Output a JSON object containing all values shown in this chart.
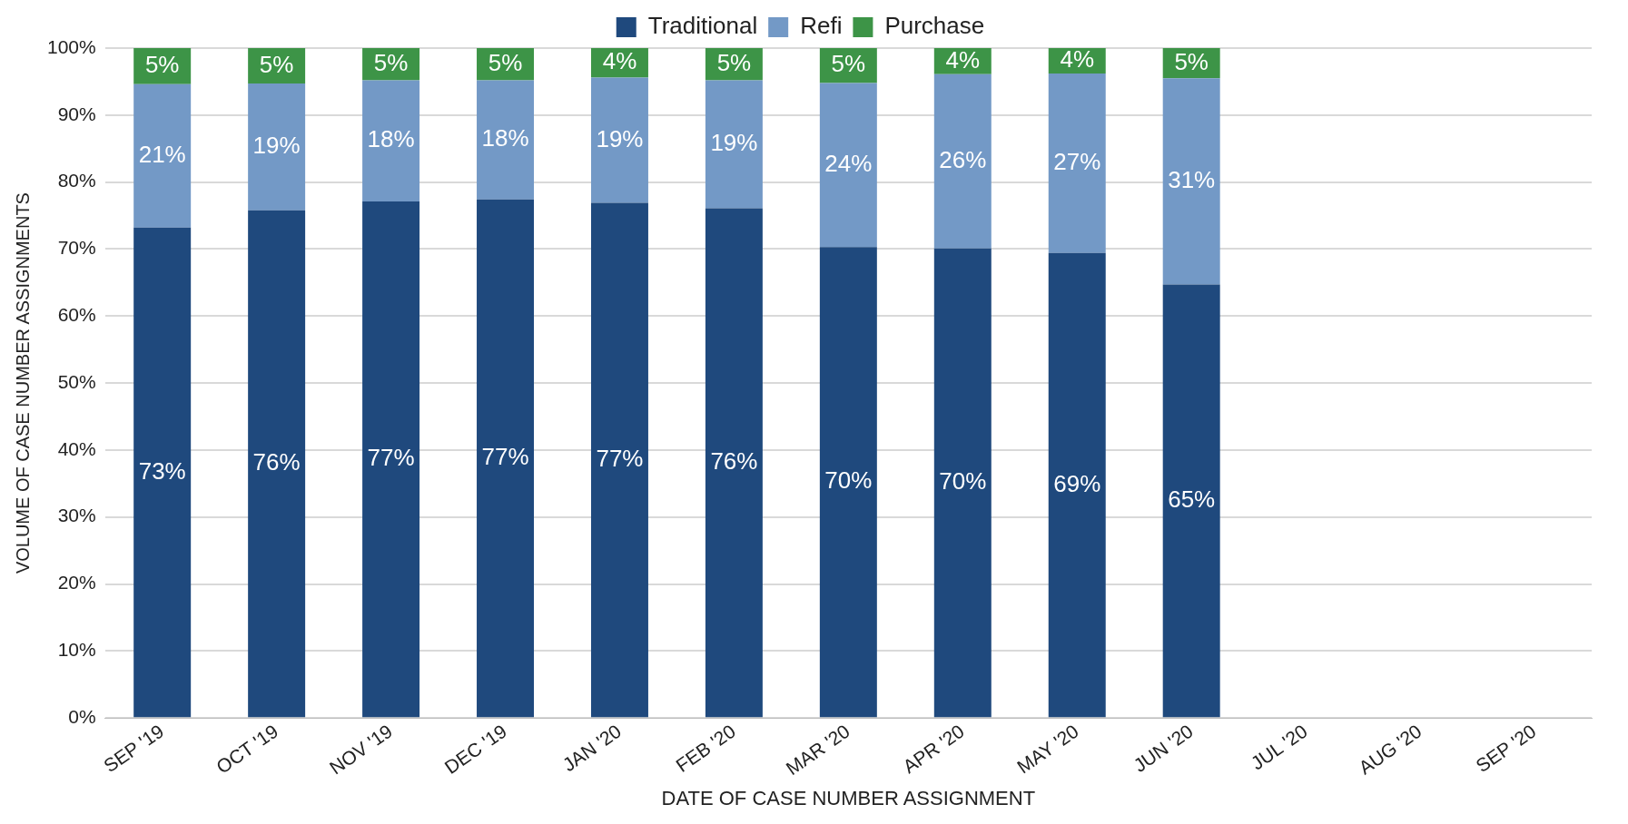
{
  "chart_data": {
    "type": "bar",
    "stacked": true,
    "xlabel": "DATE OF CASE NUMBER ASSIGNMENT",
    "ylabel": "VOLUME OF CASE NUMBER ASSIGNMENTS",
    "categories": [
      "SEP '19",
      "OCT '19",
      "NOV '19",
      "DEC '19",
      "JAN '20",
      "FEB '20",
      "MAR '20",
      "APR '20",
      "MAY '20",
      "JUN '20",
      "JUL '20",
      "AUG '20",
      "SEP '20"
    ],
    "series": [
      {
        "name": "Traditional",
        "color": "#1f497d",
        "values": [
          73.2,
          75.8,
          77.1,
          77.4,
          76.9,
          76.1,
          70.3,
          70.1,
          69.4,
          64.7,
          null,
          null,
          null
        ],
        "value_labels": [
          "73%",
          "76%",
          "77%",
          "77%",
          "77%",
          "76%",
          "70%",
          "70%",
          "69%",
          "65%",
          null,
          null,
          null
        ]
      },
      {
        "name": "Refi",
        "color": "#7399c6",
        "values": [
          21.4,
          18.9,
          18.1,
          17.8,
          18.7,
          19.1,
          24.5,
          26.0,
          26.8,
          30.8,
          null,
          null,
          null
        ],
        "value_labels": [
          "21%",
          "19%",
          "18%",
          "18%",
          "19%",
          "19%",
          "24%",
          "26%",
          "27%",
          "31%",
          null,
          null,
          null
        ]
      },
      {
        "name": "Purchase",
        "color": "#3d9447",
        "values": [
          5.4,
          5.3,
          4.8,
          4.8,
          4.4,
          4.8,
          5.2,
          3.9,
          3.8,
          4.5,
          null,
          null,
          null
        ],
        "value_labels": [
          "5%",
          "5%",
          "5%",
          "5%",
          "4%",
          "5%",
          "5%",
          "4%",
          "4%",
          "5%",
          null,
          null,
          null
        ]
      }
    ],
    "ylim": [
      0,
      100
    ],
    "yticks": [
      {
        "value": 0,
        "label": "0%"
      },
      {
        "value": 10,
        "label": "10%"
      },
      {
        "value": 20,
        "label": "20%"
      },
      {
        "value": 30,
        "label": "30%"
      },
      {
        "value": 40,
        "label": "40%"
      },
      {
        "value": 50,
        "label": "50%"
      },
      {
        "value": 60,
        "label": "60%"
      },
      {
        "value": 70,
        "label": "70%"
      },
      {
        "value": 80,
        "label": "80%"
      },
      {
        "value": 90,
        "label": "90%"
      },
      {
        "value": 100,
        "label": "100%"
      }
    ],
    "grid": "y",
    "legend": "top"
  }
}
